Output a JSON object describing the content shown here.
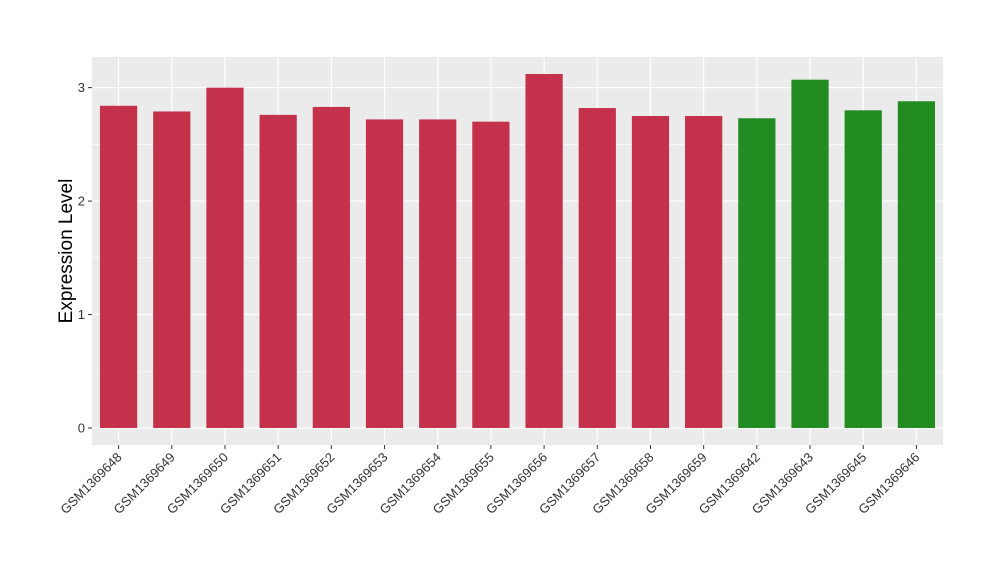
{
  "chart_data": {
    "type": "bar",
    "title": "",
    "xlabel": "",
    "ylabel": "Expression Level",
    "ylim": [
      -0.15,
      3.27
    ],
    "yticks": [
      0,
      1,
      2,
      3
    ],
    "grid": true,
    "legend": "none",
    "categories": [
      "GSM1369648",
      "GSM1369649",
      "GSM1369650",
      "GSM1369651",
      "GSM1369652",
      "GSM1369653",
      "GSM1369654",
      "GSM1369655",
      "GSM1369656",
      "GSM1369657",
      "GSM1369658",
      "GSM1369659",
      "GSM1369642",
      "GSM1369643",
      "GSM1369645",
      "GSM1369646"
    ],
    "values": [
      2.84,
      2.79,
      3.0,
      2.76,
      2.83,
      2.72,
      2.72,
      2.7,
      3.12,
      2.82,
      2.75,
      2.75,
      2.73,
      3.07,
      2.8,
      2.88
    ],
    "bar_colors": [
      "#c3314a",
      "#c3314a",
      "#c3314a",
      "#c3314a",
      "#c3314a",
      "#c3314a",
      "#c3314a",
      "#c3314a",
      "#c3314a",
      "#c3314a",
      "#c3314a",
      "#c3314a",
      "#228b22",
      "#228b22",
      "#228b22",
      "#228b22"
    ],
    "panel_background": "#ebebeb",
    "grid_color": "#ffffff"
  }
}
